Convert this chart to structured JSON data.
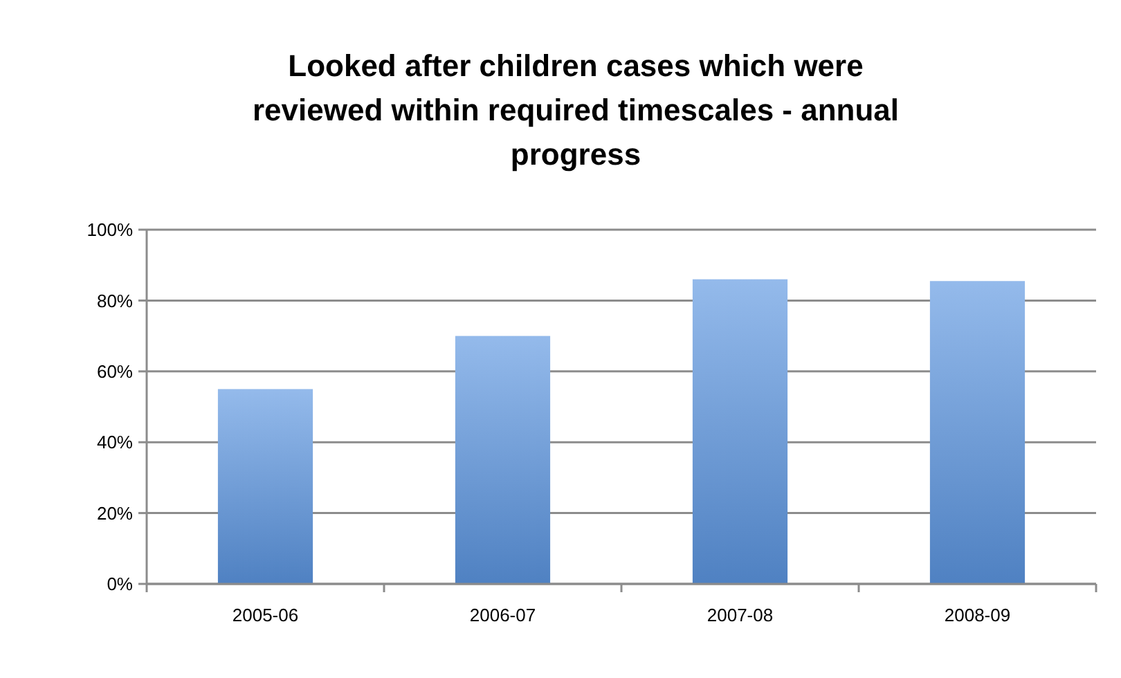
{
  "chart_data": {
    "type": "bar",
    "title": "Looked after children cases which were reviewed within required timescales - annual progress",
    "categories": [
      "2005-06",
      "2006-07",
      "2007-08",
      "2008-09"
    ],
    "values": [
      55,
      70,
      86,
      85.5
    ],
    "color": "#5b95e0",
    "ylim": [
      0,
      100
    ],
    "yticks": [
      {
        "value": 0,
        "label": "0%"
      },
      {
        "value": 20,
        "label": "20%"
      },
      {
        "value": 40,
        "label": "40%"
      },
      {
        "value": 60,
        "label": "60%"
      },
      {
        "value": 80,
        "label": "80%"
      },
      {
        "value": 100,
        "label": "100%"
      }
    ],
    "grid": "y"
  }
}
